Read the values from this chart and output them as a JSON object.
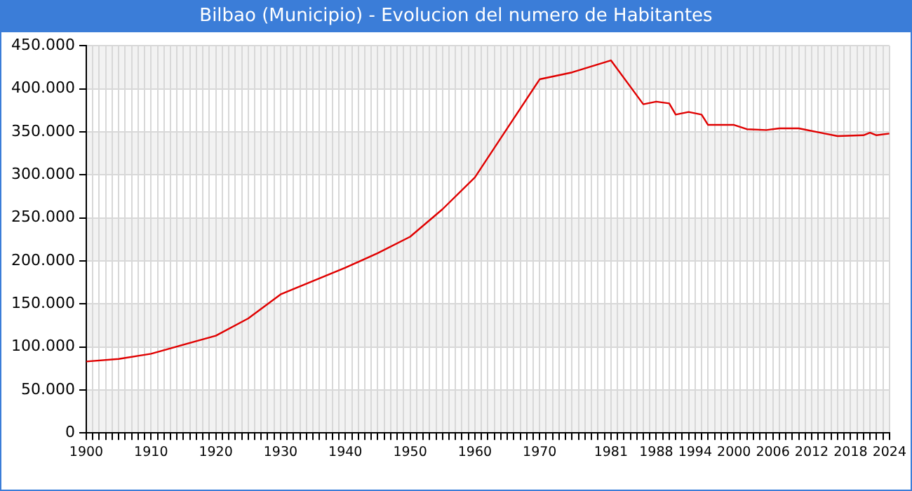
{
  "chart_data": {
    "type": "line",
    "title": "Bilbao (Municipio) - Evolucion del numero de Habitantes",
    "x": [
      1900,
      1905,
      1910,
      1920,
      1925,
      1930,
      1940,
      1945,
      1950,
      1955,
      1960,
      1965,
      1970,
      1975,
      1981,
      1986,
      1988,
      1990,
      1991,
      1993,
      1995,
      1996,
      2000,
      2002,
      2005,
      2007,
      2010,
      2014,
      2016,
      2020,
      2021,
      2022,
      2024
    ],
    "series": [
      {
        "color": "#e00000",
        "values": [
          83000,
          86000,
          92000,
          113000,
          133000,
          161000,
          192000,
          209000,
          228000,
          260000,
          297000,
          354000,
          411000,
          419000,
          433000,
          382000,
          385000,
          383000,
          370000,
          373000,
          370000,
          358000,
          358000,
          353000,
          352000,
          354000,
          354000,
          348000,
          345000,
          346000,
          349000,
          346000,
          348000
        ]
      }
    ],
    "xlim": [
      1900,
      2024
    ],
    "xticks": [
      1900,
      1910,
      1920,
      1930,
      1940,
      1950,
      1960,
      1970,
      1981,
      1988,
      1994,
      2000,
      2006,
      2012,
      2018,
      2024
    ],
    "ylim": [
      0,
      450000
    ],
    "yticks": [
      {
        "value": 0,
        "label": "0"
      },
      {
        "value": 50000,
        "label": "50.000"
      },
      {
        "value": 100000,
        "label": "100.000"
      },
      {
        "value": 150000,
        "label": "150.000"
      },
      {
        "value": 200000,
        "label": "200.000"
      },
      {
        "value": 250000,
        "label": "250.000"
      },
      {
        "value": 300000,
        "label": "300.000"
      },
      {
        "value": 350000,
        "label": "350.000"
      },
      {
        "value": 400000,
        "label": "400.000"
      },
      {
        "value": 450000,
        "label": "450.000"
      }
    ],
    "grid": true,
    "legend": false,
    "marker": "none",
    "line_style": "solid"
  }
}
